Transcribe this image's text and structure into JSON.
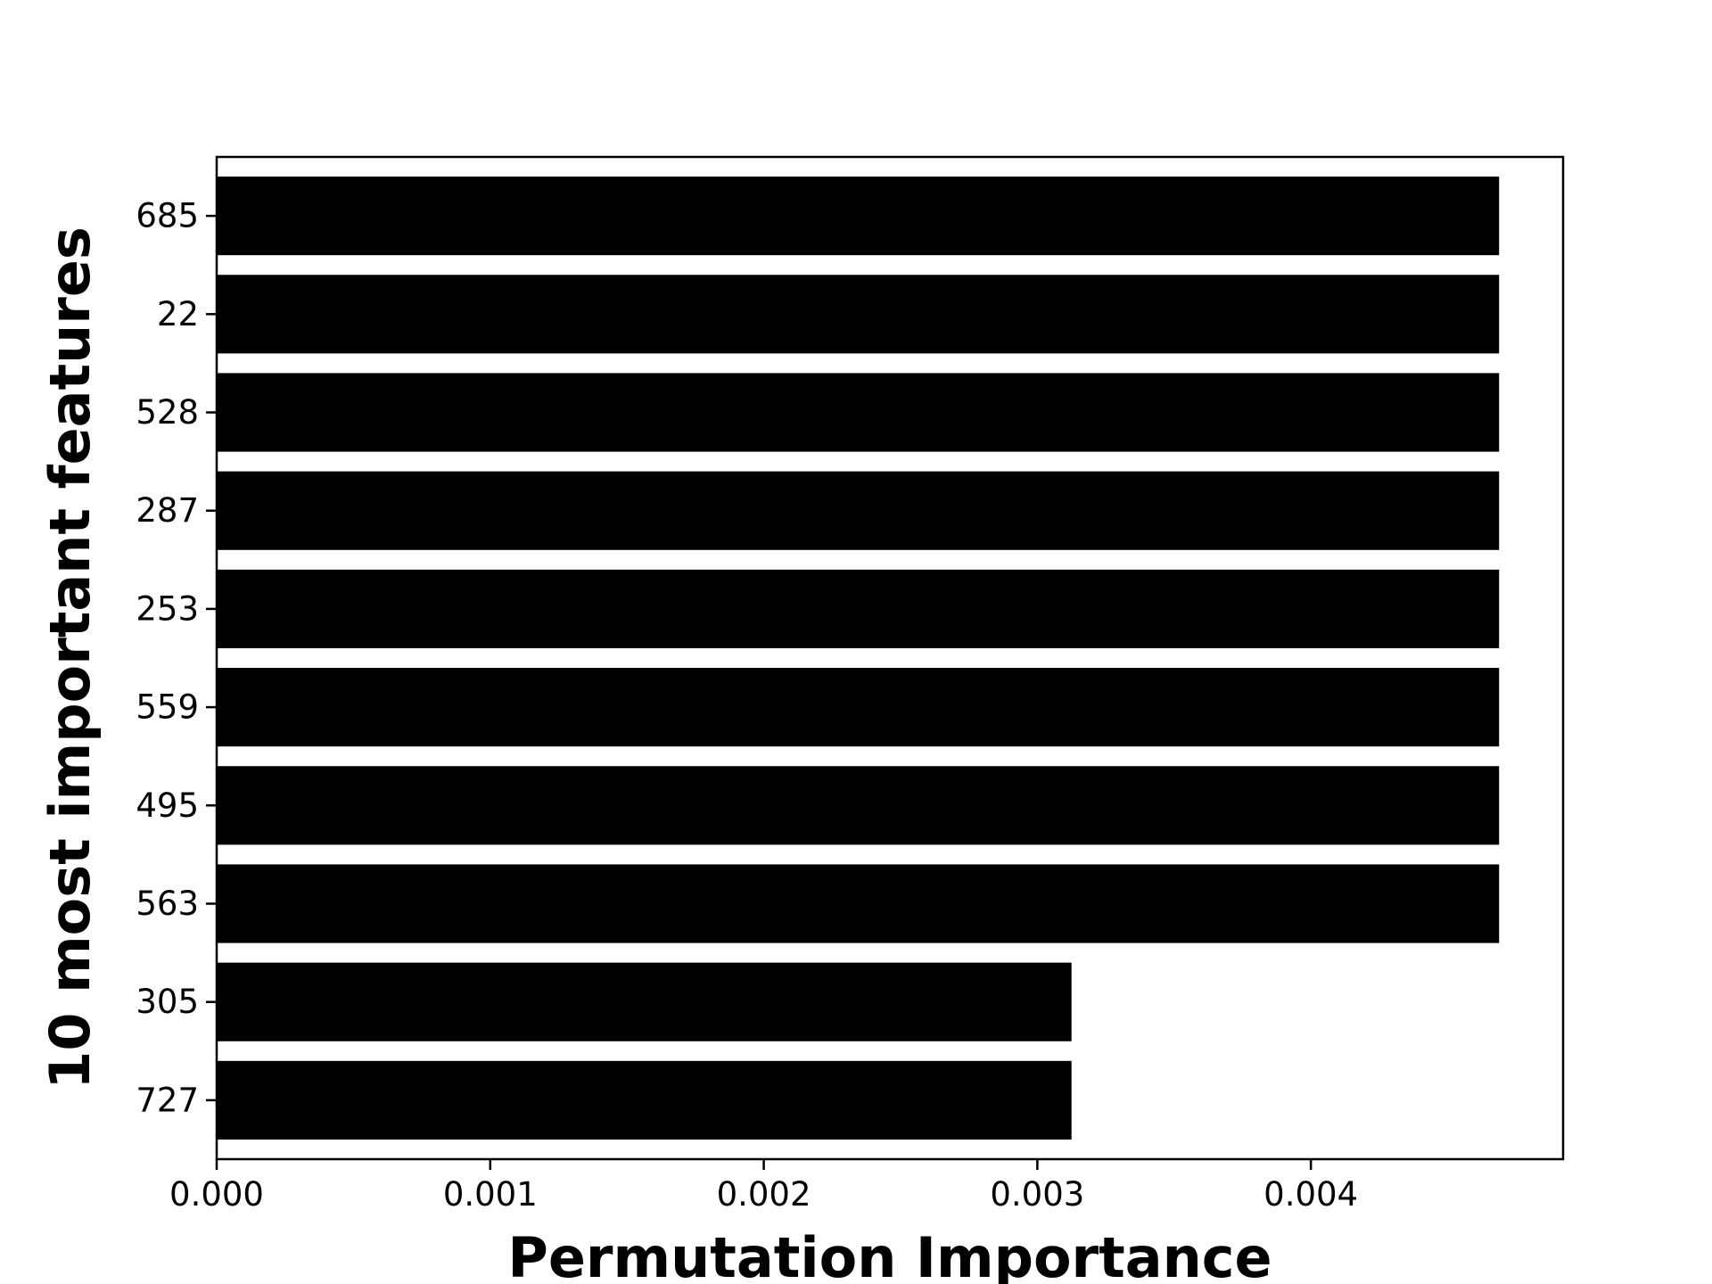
{
  "chart_data": {
    "type": "bar",
    "orientation": "horizontal",
    "title": "",
    "xlabel": "Permutation Importance",
    "ylabel": "10 most important features",
    "categories": [
      "685",
      "22",
      "528",
      "287",
      "253",
      "559",
      "495",
      "563",
      "305",
      "727"
    ],
    "values": [
      0.004688,
      0.004688,
      0.004688,
      0.004688,
      0.004688,
      0.004688,
      0.004688,
      0.004688,
      0.003125,
      0.003125
    ],
    "xlim": [
      0,
      0.004922
    ],
    "xticks": [
      0,
      0.001,
      0.002,
      0.003,
      0.004
    ],
    "xtick_labels": [
      "0.000",
      "0.001",
      "0.002",
      "0.003",
      "0.004"
    ],
    "grid": false,
    "legend": "none",
    "colors": {
      "bar": "#000000",
      "axes": "#000000",
      "background": "#ffffff"
    }
  }
}
